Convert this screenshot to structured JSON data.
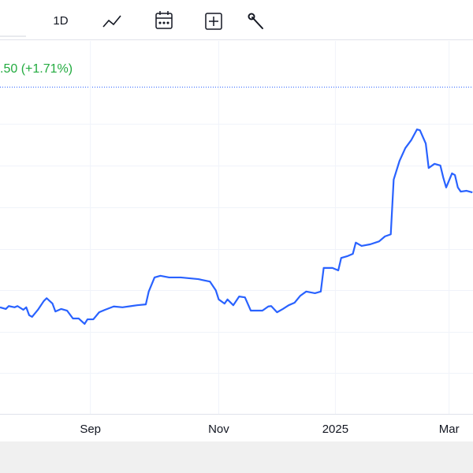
{
  "toolbar": {
    "interval": "1D"
  },
  "price_change": ".50 (+1.71%)",
  "chart_data": {
    "type": "line",
    "x": [
      0,
      2,
      3,
      5,
      6,
      8,
      9,
      10,
      11,
      13,
      15,
      16,
      18,
      19,
      21,
      23,
      25,
      27,
      29,
      30,
      32,
      34,
      36,
      39,
      42,
      45,
      47,
      50,
      51,
      53,
      55,
      58,
      62,
      68,
      72,
      74,
      75,
      77,
      78,
      80,
      82,
      84,
      86,
      90,
      92,
      93,
      95,
      97,
      99,
      101,
      103,
      105,
      108,
      110,
      111,
      114,
      116,
      117,
      119,
      121,
      122,
      124,
      127,
      130,
      132,
      134,
      135,
      137,
      139,
      141,
      143,
      144,
      146,
      147,
      149,
      151,
      152,
      153,
      155,
      156,
      157,
      158,
      160,
      162
    ],
    "series": [
      {
        "color": "#2962ff",
        "values": [
          2.57,
          2.53,
          2.6,
          2.57,
          2.6,
          2.51,
          2.57,
          2.38,
          2.34,
          2.51,
          2.72,
          2.79,
          2.66,
          2.47,
          2.53,
          2.49,
          2.3,
          2.3,
          2.17,
          2.28,
          2.28,
          2.45,
          2.51,
          2.59,
          2.57,
          2.6,
          2.62,
          2.64,
          2.95,
          3.29,
          3.33,
          3.29,
          3.29,
          3.25,
          3.19,
          2.98,
          2.76,
          2.66,
          2.76,
          2.62,
          2.83,
          2.81,
          2.49,
          2.49,
          2.59,
          2.6,
          2.45,
          2.53,
          2.62,
          2.68,
          2.85,
          2.95,
          2.91,
          2.95,
          3.52,
          3.52,
          3.46,
          3.76,
          3.8,
          3.86,
          4.13,
          4.05,
          4.09,
          4.16,
          4.28,
          4.33,
          5.65,
          6.1,
          6.41,
          6.6,
          6.86,
          6.84,
          6.52,
          5.93,
          6.03,
          5.99,
          5.7,
          5.46,
          5.8,
          5.76,
          5.46,
          5.36,
          5.38,
          5.34
        ]
      }
    ],
    "xlim": [
      0,
      162.2
    ],
    "xticks": [
      {
        "value": 31,
        "label": "Sep"
      },
      {
        "value": 75,
        "label": "Nov"
      },
      {
        "value": 115,
        "label": "2025"
      },
      {
        "value": 154,
        "label": "Mar"
      }
    ],
    "ylim": [
      0,
      8
    ],
    "grid": true
  }
}
